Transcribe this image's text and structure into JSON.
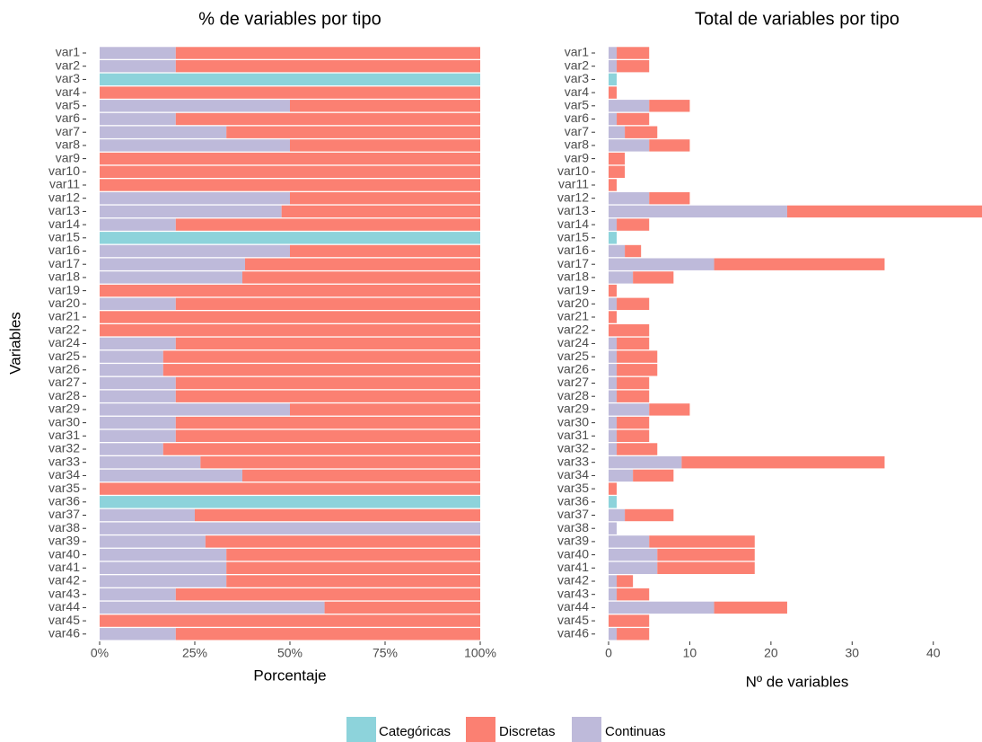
{
  "chart_data": [
    {
      "type": "stacked_barh",
      "title": "% de variables por tipo",
      "xlabel": "Porcentaje",
      "ylabel": "Variables",
      "categories": [
        "var1",
        "var2",
        "var3",
        "var4",
        "var5",
        "var6",
        "var7",
        "var8",
        "var9",
        "var10",
        "var11",
        "var12",
        "var13",
        "var14",
        "var15",
        "var16",
        "var17",
        "var18",
        "var19",
        "var20",
        "var21",
        "var22",
        "var24",
        "var25",
        "var26",
        "var27",
        "var28",
        "var29",
        "var30",
        "var31",
        "var32",
        "var33",
        "var34",
        "var35",
        "var36",
        "var37",
        "var38",
        "var39",
        "var40",
        "var41",
        "var42",
        "var43",
        "var44",
        "var45",
        "var46"
      ],
      "series": [
        {
          "name": "Categóricas",
          "color": "#8dd3db",
          "values": [
            0,
            0,
            100,
            0,
            0,
            0,
            0,
            0,
            0,
            0,
            0,
            0,
            0,
            0,
            100,
            0,
            0,
            0,
            0,
            0,
            0,
            0,
            0,
            0,
            0,
            0,
            0,
            0,
            0,
            0,
            0,
            0,
            0,
            0,
            100,
            0,
            0,
            0,
            0,
            0,
            0,
            0,
            0,
            0,
            0
          ]
        },
        {
          "name": "Discretas",
          "color": "#fb8072",
          "values": [
            80,
            80,
            0,
            100,
            50,
            80,
            66.7,
            50,
            100,
            100,
            100,
            50,
            52.2,
            80,
            0,
            50,
            61.8,
            62.5,
            100,
            80,
            100,
            100,
            80,
            83.3,
            83.3,
            80,
            80,
            50,
            80,
            80,
            83.3,
            73.5,
            62.5,
            100,
            0,
            75,
            0,
            72.2,
            66.7,
            66.7,
            66.7,
            80,
            40.9,
            100,
            80
          ]
        },
        {
          "name": "Continuas",
          "color": "#bebada",
          "values": [
            20,
            20,
            0,
            0,
            50,
            20,
            33.3,
            50,
            0,
            0,
            0,
            50,
            47.8,
            20,
            0,
            50,
            38.2,
            37.5,
            0,
            20,
            0,
            0,
            20,
            16.7,
            16.7,
            20,
            20,
            50,
            20,
            20,
            16.7,
            26.5,
            37.5,
            0,
            0,
            25,
            100,
            27.8,
            33.3,
            33.3,
            33.3,
            20,
            59.1,
            0,
            20
          ]
        }
      ],
      "xlim": [
        0,
        100
      ],
      "xticks": [
        {
          "value": 0,
          "label": "0%"
        },
        {
          "value": 25,
          "label": "25%"
        },
        {
          "value": 50,
          "label": "50%"
        },
        {
          "value": 75,
          "label": "75%"
        },
        {
          "value": 100,
          "label": "100%"
        }
      ],
      "grid": false,
      "legend": "bottom"
    },
    {
      "type": "stacked_barh",
      "title": "Total de variables por tipo",
      "xlabel": "Nº de variables",
      "categories": [
        "var1",
        "var2",
        "var3",
        "var4",
        "var5",
        "var6",
        "var7",
        "var8",
        "var9",
        "var10",
        "var11",
        "var12",
        "var13",
        "var14",
        "var15",
        "var16",
        "var17",
        "var18",
        "var19",
        "var20",
        "var21",
        "var22",
        "var24",
        "var25",
        "var26",
        "var27",
        "var28",
        "var29",
        "var30",
        "var31",
        "var32",
        "var33",
        "var34",
        "var35",
        "var36",
        "var37",
        "var38",
        "var39",
        "var40",
        "var41",
        "var42",
        "var43",
        "var44",
        "var45",
        "var46"
      ],
      "series": [
        {
          "name": "Categóricas",
          "color": "#8dd3db",
          "values": [
            0,
            0,
            1,
            0,
            0,
            0,
            0,
            0,
            0,
            0,
            0,
            0,
            0,
            0,
            1,
            0,
            0,
            0,
            0,
            0,
            0,
            0,
            0,
            0,
            0,
            0,
            0,
            0,
            0,
            0,
            0,
            0,
            0,
            0,
            1,
            0,
            0,
            0,
            0,
            0,
            0,
            0,
            0,
            0,
            0
          ]
        },
        {
          "name": "Discretas",
          "color": "#fb8072",
          "values": [
            4,
            4,
            0,
            1,
            5,
            4,
            4,
            5,
            2,
            2,
            1,
            5,
            24,
            4,
            0,
            2,
            21,
            5,
            1,
            4,
            1,
            5,
            4,
            5,
            5,
            4,
            4,
            5,
            4,
            4,
            5,
            25,
            5,
            1,
            0,
            6,
            0,
            13,
            12,
            12,
            2,
            4,
            9,
            5,
            4
          ]
        },
        {
          "name": "Continuas",
          "color": "#bebada",
          "values": [
            1,
            1,
            0,
            0,
            5,
            1,
            2,
            5,
            0,
            0,
            0,
            5,
            22,
            1,
            0,
            2,
            13,
            3,
            0,
            1,
            0,
            0,
            1,
            1,
            1,
            1,
            1,
            5,
            1,
            1,
            1,
            9,
            3,
            0,
            0,
            2,
            1,
            5,
            6,
            6,
            1,
            1,
            13,
            0,
            1
          ]
        }
      ],
      "xlim": [
        0,
        46
      ],
      "xticks": [
        0,
        10,
        20,
        30,
        40
      ],
      "grid": false
    }
  ]
}
